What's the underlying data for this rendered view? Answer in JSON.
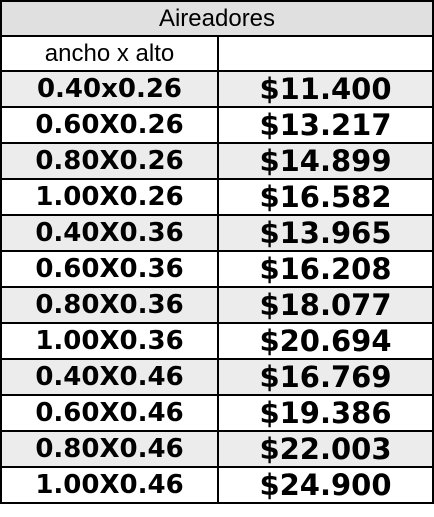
{
  "table": {
    "title": "Aireadores",
    "size_header": "ancho x alto",
    "price_header": "",
    "rows": [
      {
        "size": "0.40x0.26",
        "price": "$11.400"
      },
      {
        "size": "0.60X0.26",
        "price": "$13.217"
      },
      {
        "size": "0.80X0.26",
        "price": "$14.899"
      },
      {
        "size": "1.00X0.26",
        "price": "$16.582"
      },
      {
        "size": "0.40X0.36",
        "price": "$13.965"
      },
      {
        "size": "0.60X0.36",
        "price": "$16.208"
      },
      {
        "size": "0.80X0.36",
        "price": "$18.077"
      },
      {
        "size": "1.00X0.36",
        "price": "$20.694"
      },
      {
        "size": "0.40X0.46",
        "price": "$16.769"
      },
      {
        "size": "0.60X0.46",
        "price": "$19.386"
      },
      {
        "size": "0.80X0.46",
        "price": "$22.003"
      },
      {
        "size": "1.00X0.46",
        "price": "$24.900"
      }
    ],
    "colors": {
      "shaded_row": "#ececec",
      "title_background": "#e0e0e0",
      "border": "#000000"
    }
  }
}
